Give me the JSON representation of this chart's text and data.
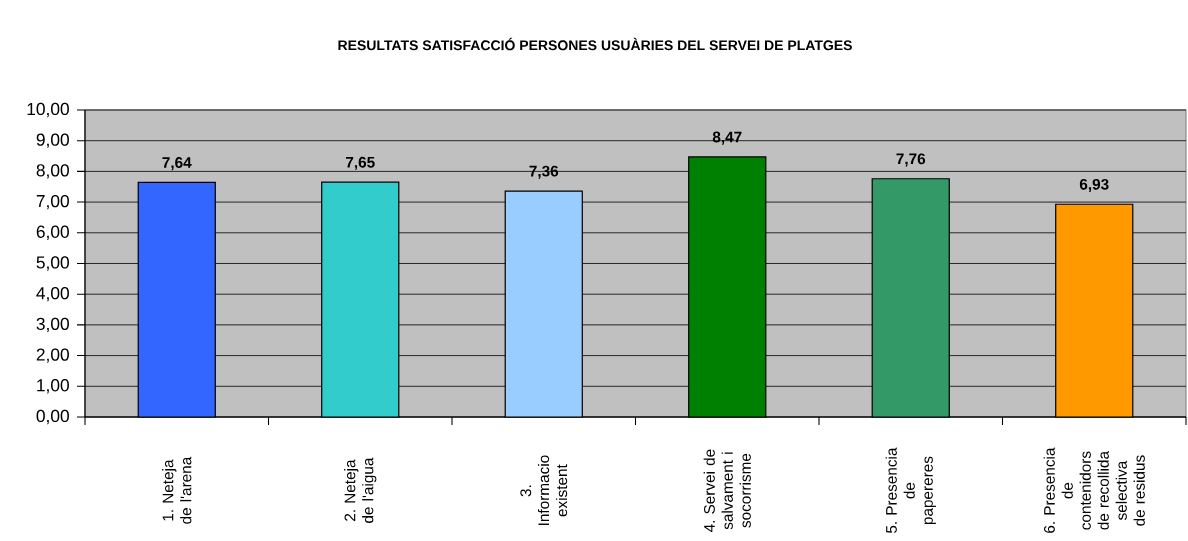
{
  "chart_data": {
    "type": "bar",
    "title": "RESULTATS SATISFACCIÓ PERSONES USUÀRIES DEL SERVEI DE PLATGES",
    "categories": [
      "1. Neteja de l'arena",
      "2. Neteja de l'aigua",
      "3. Informacio existent",
      "4. Servei de salvament i socorrisme",
      "5. Presencia de papereres",
      "6. Presencia de contenidors de recollida selectiva de residus"
    ],
    "values": [
      7.64,
      7.65,
      7.36,
      8.47,
      7.76,
      6.93
    ],
    "colors": [
      "#3366ff",
      "#33cccc",
      "#99ccff",
      "#008000",
      "#339966",
      "#ff9900"
    ],
    "value_labels": [
      "7,64",
      "7,65",
      "7,36",
      "8,47",
      "7,76",
      "6,93"
    ],
    "ylim": [
      0,
      10
    ],
    "yticks": [
      {
        "value": 0,
        "label": "0,00"
      },
      {
        "value": 1,
        "label": "1,00"
      },
      {
        "value": 2,
        "label": "2,00"
      },
      {
        "value": 3,
        "label": "3,00"
      },
      {
        "value": 4,
        "label": "4,00"
      },
      {
        "value": 5,
        "label": "5,00"
      },
      {
        "value": 6,
        "label": "6,00"
      },
      {
        "value": 7,
        "label": "7,00"
      },
      {
        "value": 8,
        "label": "8,00"
      },
      {
        "value": 9,
        "label": "9,00"
      },
      {
        "value": 10,
        "label": "10,00"
      }
    ],
    "grid": "y"
  }
}
